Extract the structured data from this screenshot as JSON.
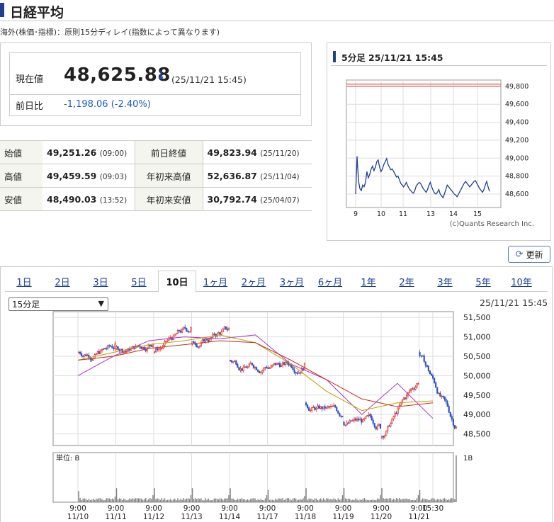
{
  "page": {
    "title": "日経平均",
    "note": "海外(株価･指標)：原則15分ディレイ(指数によって異なります)"
  },
  "current": {
    "label": "現在値",
    "value": "48,625.88",
    "direction": "down",
    "arrow": "↓",
    "time": "(25/11/21 15:45)",
    "prev_label": "前日比",
    "prev_change": "-1,198.06 (-2.40%)"
  },
  "stats": [
    {
      "label": "始値",
      "value": "49,251.26",
      "time": "(09:00)",
      "label2": "前日終値",
      "value2": "49,823.94",
      "time2": "(25/11/20)"
    },
    {
      "label": "高値",
      "value": "49,459.59",
      "time": "(09:03)",
      "label2": "年初来高値",
      "value2": "52,636.87",
      "time2": "(25/11/04)"
    },
    {
      "label": "安値",
      "value": "48,490.03",
      "time": "(13:52)",
      "label2": "年初来安値",
      "value2": "30,792.74",
      "time2": "(25/04/07)"
    }
  ],
  "mini_chart": {
    "title": "5分足 25/11/21 15:45",
    "credit": "(c)Quants Research Inc."
  },
  "refresh_label": "更新",
  "tabs": [
    {
      "label": "1日",
      "active": false
    },
    {
      "label": "2日",
      "active": false
    },
    {
      "label": "3日",
      "active": false
    },
    {
      "label": "5日",
      "active": false
    },
    {
      "label": "10日",
      "active": true
    },
    {
      "label": "1ヶ月",
      "active": false
    },
    {
      "label": "2ヶ月",
      "active": false
    },
    {
      "label": "3ヶ月",
      "active": false
    },
    {
      "label": "6ヶ月",
      "active": false
    },
    {
      "label": "1年",
      "active": false
    },
    {
      "label": "2年",
      "active": false
    },
    {
      "label": "3年",
      "active": false
    },
    {
      "label": "5年",
      "active": false
    },
    {
      "label": "10年",
      "active": false
    }
  ],
  "period_select": {
    "value": "15分足"
  },
  "main_chart_time": "25/11/21 15:45",
  "colors": {
    "accent": "#1f3f8f",
    "down": "#1b5bc7",
    "up_candle": "#e03030",
    "down_candle": "#3050c0",
    "ma_short": "#b030c0",
    "ma_mid": "#b8a000",
    "ma_long": "#c03020",
    "volume": "#808080"
  },
  "chart_data": [
    {
      "type": "line",
      "series": [
        {
          "values": [
            48600,
            49020,
            48750,
            48660,
            48640,
            48700,
            48680,
            48730,
            48850,
            48780,
            48820,
            48880,
            48910,
            48860,
            48900,
            48960,
            48980,
            48900,
            48850,
            48880,
            48930,
            48960,
            48995,
            48930,
            48900,
            48870,
            48880,
            48850,
            48820,
            48790,
            48800,
            48760,
            48720,
            48700,
            48680,
            48700,
            48730,
            48690,
            48660,
            48640,
            48620,
            48610,
            48640,
            48690,
            48710,
            48730,
            48720,
            48690,
            48660,
            48640,
            48620,
            48650,
            48700,
            48730,
            48680,
            48640,
            48610,
            48600,
            48620,
            48650,
            48600,
            48580,
            48560,
            48600,
            48650,
            48700,
            48680,
            48660,
            48640,
            48620,
            48600,
            48590,
            48570,
            48600,
            48630,
            48660,
            48690,
            48720,
            48740,
            48720,
            48700,
            48680,
            48700,
            48720,
            48740,
            48750,
            48720,
            48690,
            48660,
            48640,
            48620,
            48650,
            48700,
            48740,
            48680,
            48630
          ]
        }
      ],
      "x_ticks": [
        "9",
        "10",
        "11",
        "13",
        "14",
        "15"
      ],
      "y_ticks": [
        "48,600",
        "48,800",
        "49,000",
        "49,200",
        "49,400",
        "49,600",
        "49,800"
      ],
      "ylim": [
        48450,
        49870
      ],
      "reference_lines": [
        49800,
        49823.94
      ],
      "grid": true
    },
    {
      "type": "candlestick",
      "x_ticks": [
        {
          "time": "9:00",
          "date": "11/10"
        },
        {
          "time": "9:00",
          "date": "11/11"
        },
        {
          "time": "9:00",
          "date": "11/12"
        },
        {
          "time": "9:00",
          "date": "11/13"
        },
        {
          "time": "9:00",
          "date": "11/14"
        },
        {
          "time": "9:00",
          "date": "11/17"
        },
        {
          "time": "9:00",
          "date": "11/18"
        },
        {
          "time": "9:00",
          "date": "11/19"
        },
        {
          "time": "9:00",
          "date": "11/20"
        },
        {
          "time": "9:00",
          "date": "11/21"
        },
        {
          "time": "15:30",
          "date": ""
        }
      ],
      "y_ticks": [
        "48,500",
        "49,000",
        "49,500",
        "50,000",
        "50,500",
        "51,000",
        "51,500"
      ],
      "ylim": [
        48200,
        51650
      ],
      "day_closes": [
        50750,
        50850,
        51200,
        51200,
        50250,
        50250,
        49000,
        48700,
        49850,
        48650
      ],
      "series": [
        {
          "name": "",
          "values": [
            50000,
            50500,
            50900,
            51000,
            50950,
            51050,
            50300,
            49900,
            49000,
            49800,
            48900
          ]
        },
        {
          "name": "",
          "values": [
            50400,
            50600,
            50800,
            50900,
            51050,
            50850,
            50300,
            49600,
            49100,
            49300,
            49350
          ]
        },
        {
          "name": "",
          "values": [
            50400,
            50500,
            50700,
            50800,
            50900,
            50850,
            50400,
            49900,
            49400,
            49200,
            49300
          ]
        }
      ],
      "volume": {
        "unit_label": "単位: B",
        "max_label": "1B",
        "day_peaks": [
          0.24,
          0.3,
          0.3,
          0.3,
          0.3,
          0.26,
          0.3,
          0.3,
          0.3,
          0.26,
          1.0
        ]
      },
      "grid": true
    }
  ]
}
